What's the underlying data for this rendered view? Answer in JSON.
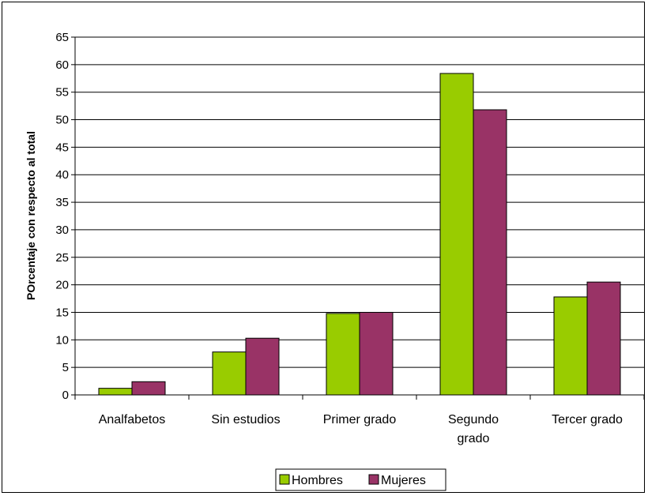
{
  "chart_data": {
    "type": "bar",
    "title": "",
    "xlabel": "",
    "ylabel": "POrcentaje con respecto al total",
    "ylim": [
      0,
      65
    ],
    "ytick_step": 5,
    "grid": true,
    "legend_position": "bottom",
    "categories": [
      [
        "Analfabetos"
      ],
      [
        "Sin estudios"
      ],
      [
        "Primer grado"
      ],
      [
        "Segundo",
        "grado"
      ],
      [
        "Tercer grado"
      ]
    ],
    "series": [
      {
        "name": "Hombres",
        "color": "#99CC00",
        "values": [
          1.2,
          7.8,
          14.8,
          58.4,
          17.8
        ]
      },
      {
        "name": "Mujeres",
        "color": "#993366",
        "values": [
          2.4,
          10.3,
          15.0,
          51.8,
          20.5
        ]
      }
    ]
  }
}
